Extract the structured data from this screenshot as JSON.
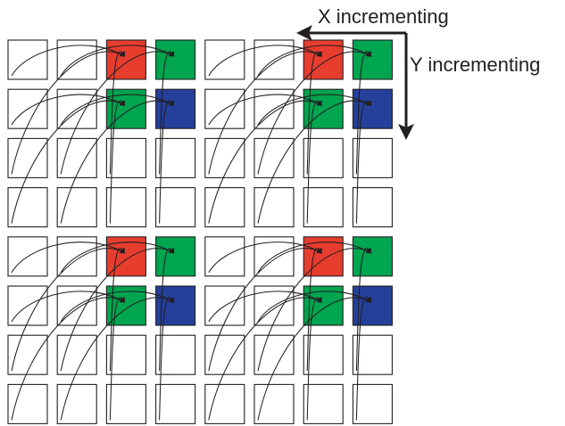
{
  "labels": {
    "x_axis": "X incrementing",
    "y_axis": "Y incrementing"
  },
  "grid": {
    "rows": 8,
    "cols": 8,
    "bayer_pattern": [
      [
        "red",
        "green"
      ],
      [
        "green",
        "blue"
      ]
    ],
    "colored_columns": [
      2,
      3,
      6,
      7
    ],
    "colored_rows": [
      0,
      1,
      4,
      5
    ]
  },
  "colors": {
    "red": "#e63d2e",
    "green": "#00a54f",
    "blue": "#24409a",
    "empty": "#ffffff",
    "stroke": "#231f20"
  }
}
